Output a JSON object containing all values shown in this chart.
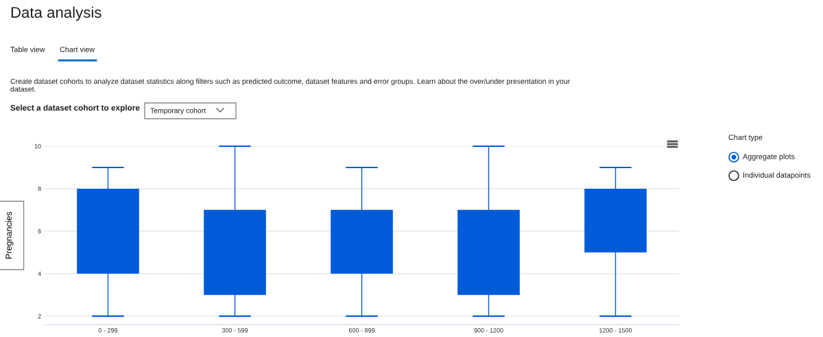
{
  "chart_data": {
    "type": "box",
    "title": "Data analysis",
    "subtitle": "Create dataset cohorts to analyze dataset statistics along filters such as predicted outcome, dataset features and error groups. Learn about the over/under presentation in your dataset.",
    "ylabel": "Pregnancies",
    "categories": [
      "0 - 299",
      "300 - 599",
      "600 - 899",
      "900 - 1200",
      "1200 - 1500"
    ],
    "boxes": [
      {
        "low": 2,
        "q1": 4,
        "q3": 8,
        "high": 9
      },
      {
        "low": 2,
        "q1": 3,
        "q3": 7,
        "high": 10
      },
      {
        "low": 2,
        "q1": 4,
        "q3": 7,
        "high": 9
      },
      {
        "low": 2,
        "q1": 3,
        "q3": 7,
        "high": 10
      },
      {
        "low": 2,
        "q1": 5,
        "q3": 8,
        "high": 9
      }
    ],
    "color": "#005bd9",
    "ylim": [
      1.6,
      10
    ],
    "yticks": [
      2,
      4,
      6,
      8,
      10
    ],
    "grid": "y",
    "legend": false,
    "annotations": [
      "Table view",
      "Chart view",
      "Select a dataset cohort to explore",
      "Temporary cohort",
      "Chart type",
      "Aggregate plots",
      "Individual datapoints"
    ]
  }
}
